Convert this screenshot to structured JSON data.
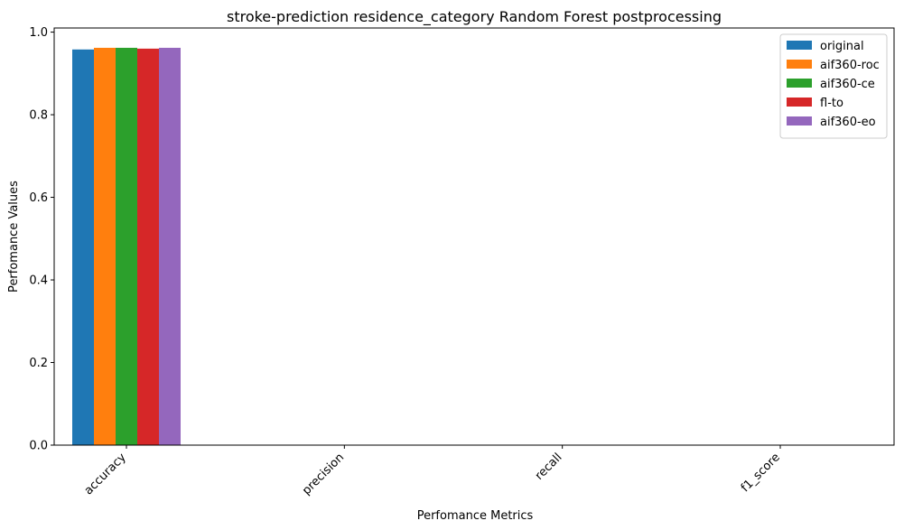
{
  "chart_data": {
    "type": "bar",
    "title": "stroke-prediction residence_category Random Forest postprocessing",
    "xlabel": "Perfomance Metrics",
    "ylabel": "Perfomance Values",
    "categories": [
      "accuracy",
      "precision",
      "recall",
      "f1_score"
    ],
    "ylim": [
      0,
      1.01
    ],
    "yticks": [
      "0.0",
      "0.2",
      "0.4",
      "0.6",
      "0.8",
      "1.0"
    ],
    "grid": false,
    "legend_position": "top-right",
    "series": [
      {
        "name": "original",
        "color": "#1f77b4",
        "values": [
          0.958,
          0,
          0,
          0
        ]
      },
      {
        "name": "aif360-roc",
        "color": "#ff7f0e",
        "values": [
          0.962,
          0,
          0,
          0
        ]
      },
      {
        "name": "aif360-ce",
        "color": "#2ca02c",
        "values": [
          0.962,
          0,
          0,
          0
        ]
      },
      {
        "name": "fl-to",
        "color": "#d62728",
        "values": [
          0.96,
          0,
          0,
          0
        ]
      },
      {
        "name": "aif360-eo",
        "color": "#9467bd",
        "values": [
          0.962,
          0,
          0,
          0
        ]
      }
    ]
  }
}
